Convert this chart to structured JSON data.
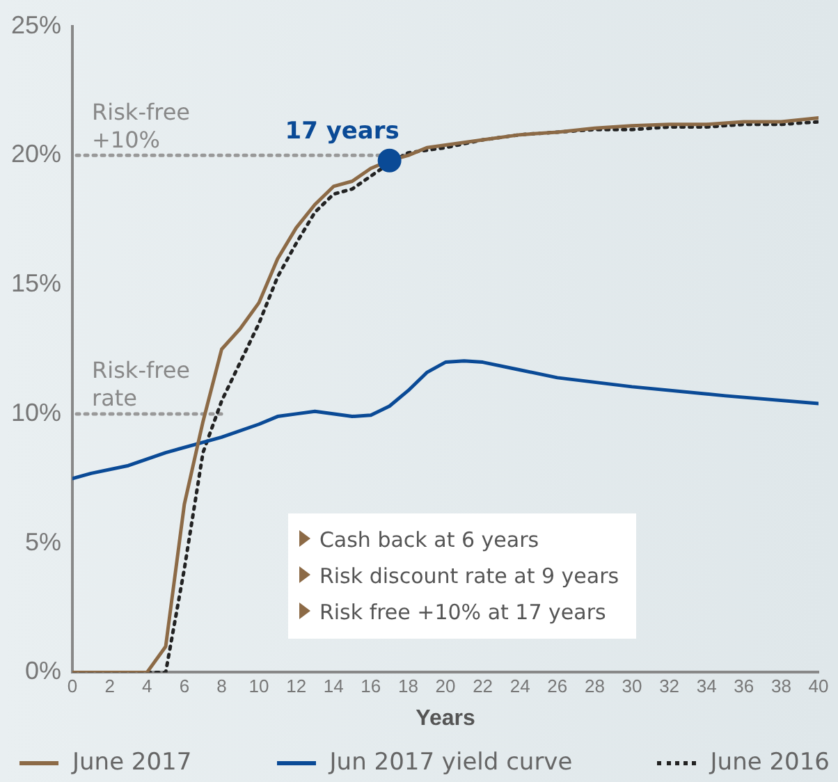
{
  "chart_data": {
    "type": "line",
    "xlabel": "Years",
    "x": [
      0,
      1,
      2,
      3,
      4,
      5,
      6,
      7,
      8,
      9,
      10,
      11,
      12,
      13,
      14,
      15,
      16,
      17,
      18,
      19,
      20,
      22,
      24,
      26,
      28,
      30,
      32,
      34,
      36,
      38,
      40
    ],
    "xlim": [
      0,
      40
    ],
    "xticks": [
      0,
      2,
      4,
      6,
      8,
      10,
      12,
      14,
      16,
      18,
      20,
      22,
      24,
      26,
      28,
      30,
      32,
      34,
      36,
      38,
      40
    ],
    "ylim": [
      0,
      25
    ],
    "yticks": [
      {
        "value": 0,
        "label": "0%"
      },
      {
        "value": 5,
        "label": "5%"
      },
      {
        "value": 10,
        "label": "10%"
      },
      {
        "value": 15,
        "label": "15%"
      },
      {
        "value": 20,
        "label": "20%"
      },
      {
        "value": 25,
        "label": "25%"
      }
    ],
    "series": [
      {
        "name": "June 2017",
        "color": "#8c6a46",
        "line_style": "solid",
        "values": [
          0,
          0,
          0,
          0,
          0,
          1,
          6.5,
          9.7,
          12.5,
          13.3,
          14.3,
          16,
          17.2,
          18.1,
          18.8,
          19,
          19.5,
          19.8,
          20,
          20.3,
          20.4,
          20.6,
          20.8,
          20.9,
          21.05,
          21.15,
          21.2,
          21.2,
          21.3,
          21.3,
          21.45
        ]
      },
      {
        "name": "Jun 2017 yield curve",
        "color": "#0a4a96",
        "line_style": "solid",
        "x": [
          0,
          1,
          3,
          5,
          8,
          10,
          11,
          12,
          13,
          15,
          16,
          17,
          18,
          19,
          20,
          21,
          22,
          24,
          26,
          30,
          35,
          40
        ],
        "values": [
          7.5,
          7.7,
          8,
          8.5,
          9.1,
          9.6,
          9.9,
          10,
          10.1,
          9.9,
          9.95,
          10.3,
          10.9,
          11.6,
          12,
          12.05,
          12,
          11.7,
          11.4,
          11.05,
          10.7,
          10.4
        ]
      },
      {
        "name": "June 2016",
        "color": "#222222",
        "line_style": "dotted",
        "values": [
          0,
          0,
          0,
          0,
          0,
          0,
          4,
          8.5,
          10.5,
          12,
          13.5,
          15.3,
          16.6,
          17.8,
          18.5,
          18.7,
          19.2,
          19.7,
          20.1,
          20.2,
          20.3,
          20.6,
          20.8,
          20.9,
          21,
          21,
          21.1,
          21.1,
          21.2,
          21.2,
          21.3
        ]
      },
      {
        "type": "scatter",
        "color": "#0a4a96",
        "marker": "circle",
        "x": [
          17
        ],
        "values": [
          19.8
        ]
      }
    ],
    "ref_lines": [
      {
        "axis": "y",
        "value": 20,
        "label": "Risk-free\n+10%",
        "color": "#999999",
        "line_style": "dotted"
      },
      {
        "axis": "y",
        "value": 10,
        "label": "Risk-free\nrate",
        "color": "#999999",
        "line_style": "dotted"
      }
    ],
    "annotations": [
      {
        "text": "17 years",
        "x": 17,
        "y": 19.8
      },
      "Cash back at 6 years",
      "Risk discount rate at 9 years",
      "Risk free +10% at 17 years"
    ],
    "grid": false,
    "legend": "bottom"
  }
}
